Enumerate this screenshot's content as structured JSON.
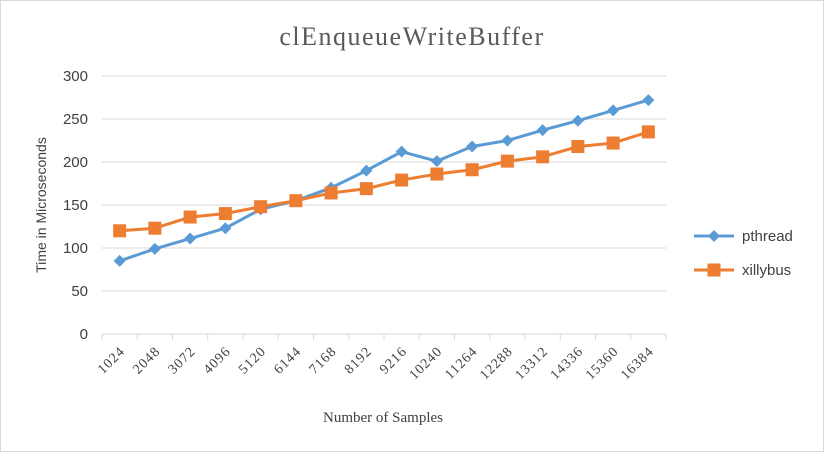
{
  "chart_data": {
    "type": "line",
    "title": "clEnqueueWriteBuffer",
    "xlabel": "Number of Samples",
    "ylabel": "Time in Microseconds",
    "categories": [
      "1024",
      "2048",
      "3072",
      "4096",
      "5120",
      "6144",
      "7168",
      "8192",
      "9216",
      "10240",
      "11264",
      "12288",
      "13312",
      "14336",
      "15360",
      "16384"
    ],
    "ylim": [
      0,
      300
    ],
    "yticks": [
      0,
      50,
      100,
      150,
      200,
      250,
      300
    ],
    "grid": true,
    "legend_position": "right",
    "series": [
      {
        "name": "pthread",
        "color": "#5b9bd5",
        "marker": "diamond",
        "values": [
          85,
          99,
          111,
          123,
          145,
          155,
          170,
          190,
          212,
          201,
          218,
          225,
          237,
          248,
          260,
          272
        ]
      },
      {
        "name": "xillybus",
        "color": "#ed7d31",
        "marker": "square",
        "values": [
          120,
          123,
          136,
          140,
          148,
          155,
          164,
          169,
          179,
          186,
          191,
          201,
          206,
          218,
          222,
          235
        ]
      }
    ]
  }
}
